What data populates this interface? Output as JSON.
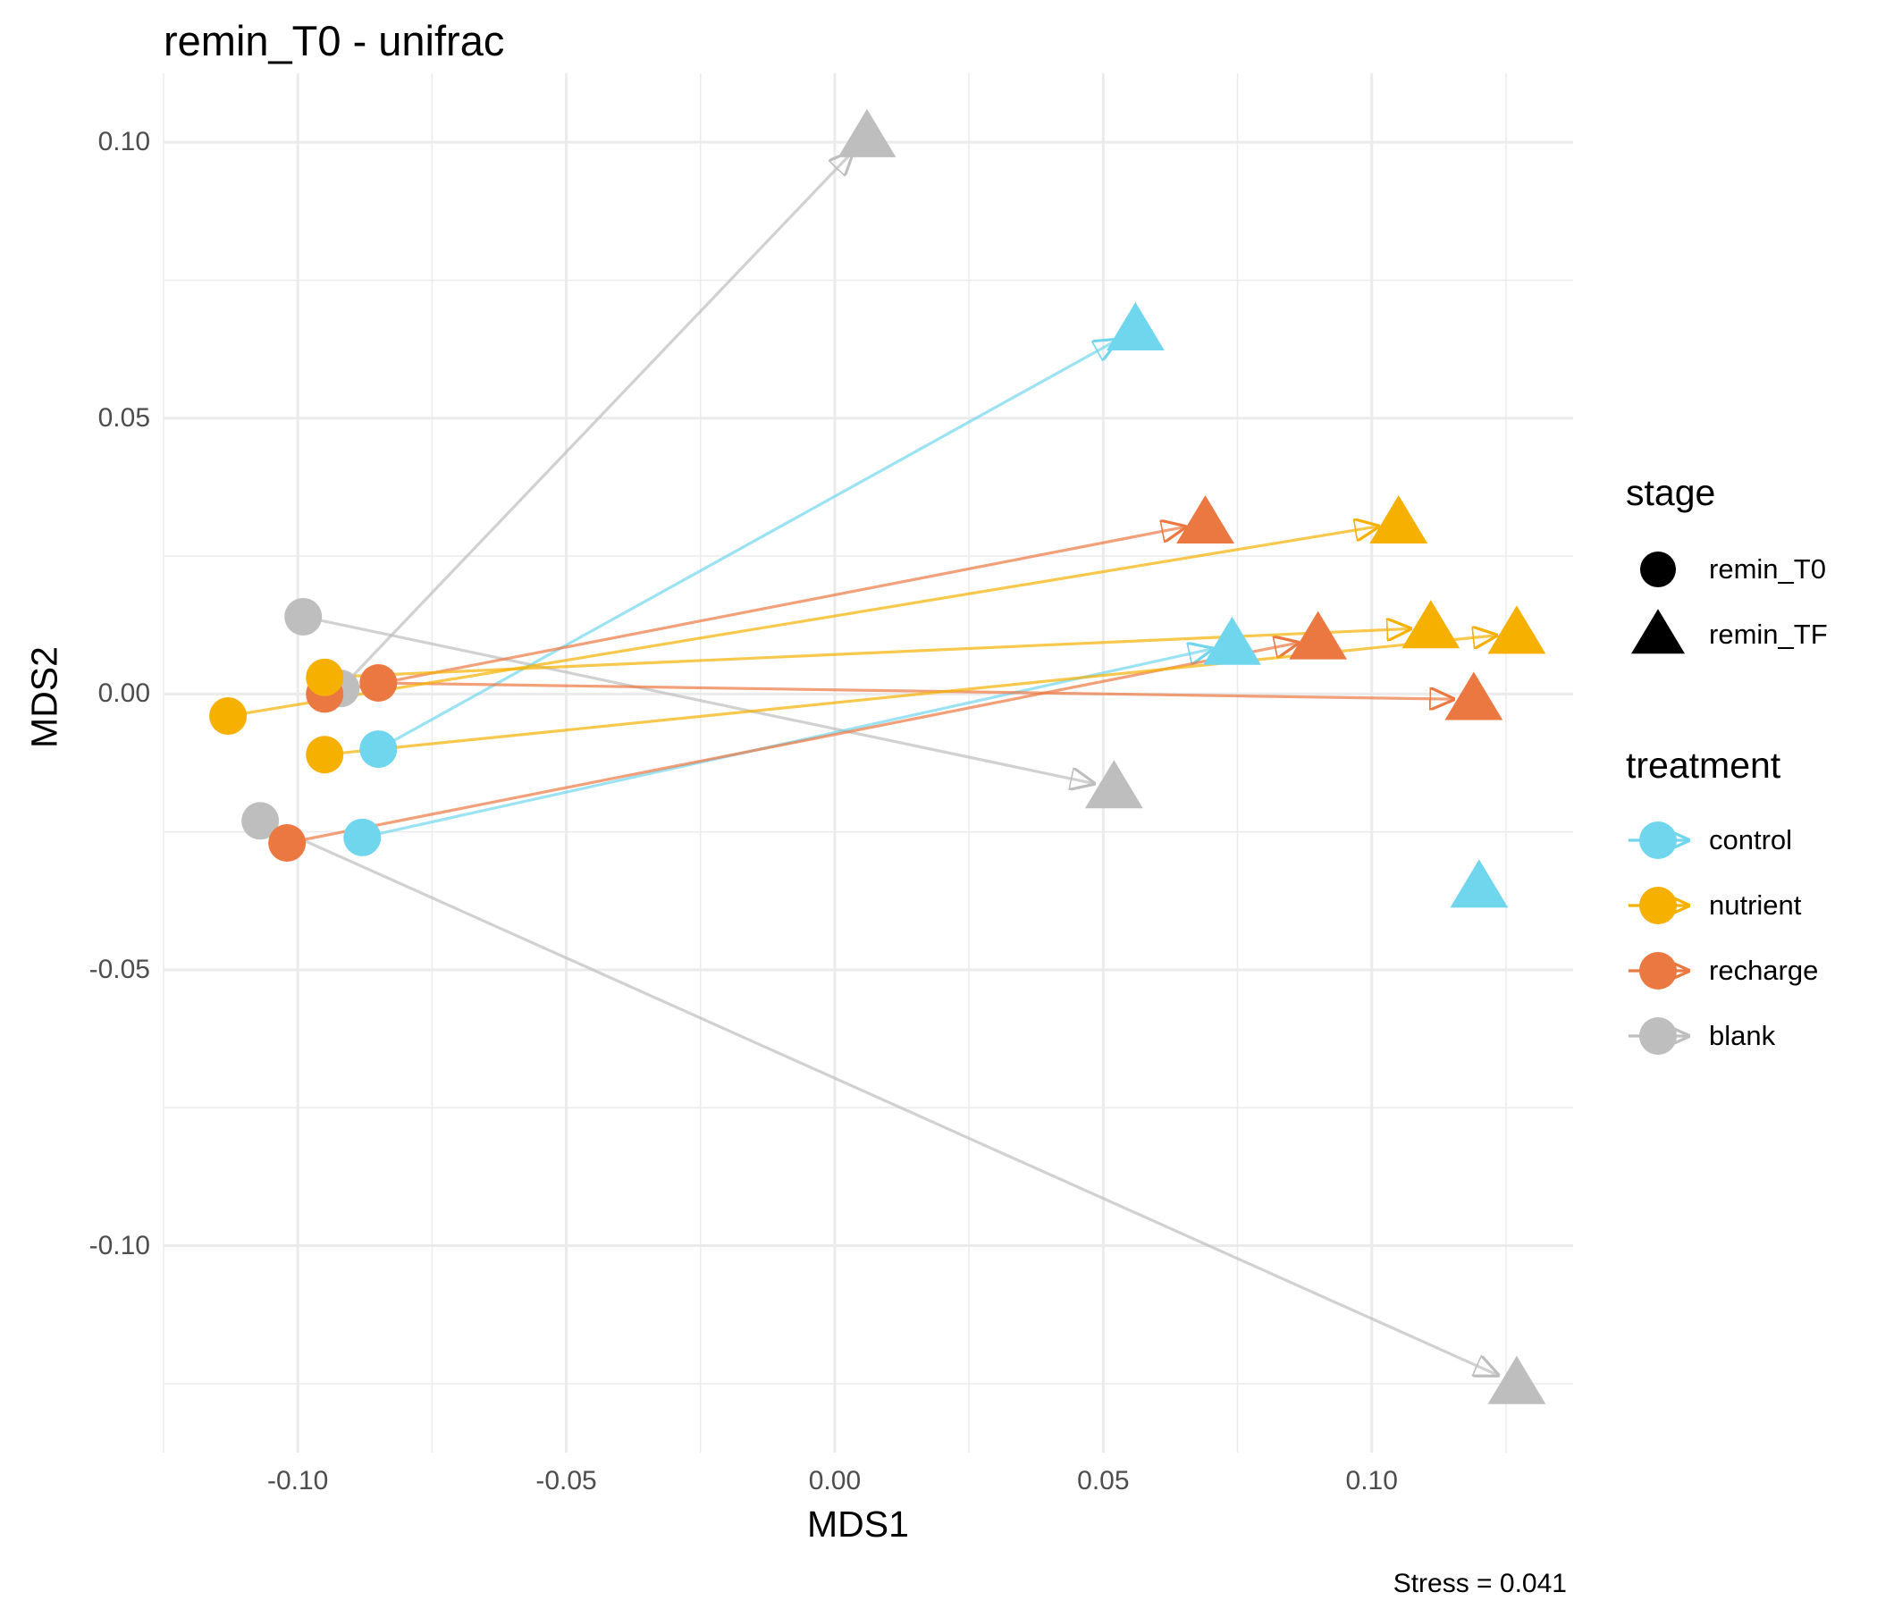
{
  "chart_data": {
    "type": "scatter",
    "title": "remin_T0 - unifrac",
    "xlabel": "MDS1",
    "ylabel": "MDS2",
    "xlim": [
      -0.125,
      0.1375
    ],
    "ylim": [
      -0.1375,
      0.1125
    ],
    "x_ticks": [
      -0.1,
      -0.05,
      0.0,
      0.05,
      0.1
    ],
    "x_tick_labels": [
      "-0.10",
      "-0.05",
      "0.00",
      "0.05",
      "0.10"
    ],
    "y_ticks": [
      0.1,
      0.05,
      0.0,
      -0.05,
      -0.1
    ],
    "y_tick_labels": [
      "0.10",
      "0.05",
      "0.00",
      "-0.05",
      "-0.10"
    ],
    "grid": true,
    "annotation": "Stress = 0.041",
    "legend_position": "right",
    "legend": {
      "stage": {
        "title": "stage",
        "items": [
          {
            "label": "remin_T0",
            "shape": "circle"
          },
          {
            "label": "remin_TF",
            "shape": "triangle"
          }
        ]
      },
      "treatment": {
        "title": "treatment",
        "items": [
          {
            "label": "control",
            "color": "#70D6EE"
          },
          {
            "label": "nutrient",
            "color": "#F5B000"
          },
          {
            "label": "recharge",
            "color": "#EC7841"
          },
          {
            "label": "blank",
            "color": "#BEBEBE"
          }
        ]
      }
    },
    "colors": {
      "control": "#70D6EE",
      "nutrient": "#F5B000",
      "recharge": "#EC7841",
      "blank": "#BEBEBE"
    },
    "series": [
      {
        "name": "blank",
        "from": [
          -0.092,
          0.001
        ],
        "to": [
          0.006,
          0.101
        ]
      },
      {
        "name": "blank",
        "from": [
          -0.099,
          0.014
        ],
        "to": [
          0.052,
          -0.017
        ]
      },
      {
        "name": "blank",
        "from": [
          -0.107,
          -0.023
        ],
        "to": [
          0.127,
          -0.125
        ]
      },
      {
        "name": "control",
        "from": [
          -0.085,
          -0.01
        ],
        "to": [
          0.056,
          0.066
        ]
      },
      {
        "name": "control",
        "from": [
          -0.088,
          -0.026
        ],
        "to": [
          0.074,
          0.009
        ]
      },
      {
        "name": "control",
        "from": null,
        "to": [
          0.12,
          -0.035
        ]
      },
      {
        "name": "recharge",
        "from": [
          -0.095,
          0.0
        ],
        "to": [
          0.069,
          0.031
        ]
      },
      {
        "name": "recharge",
        "from": [
          -0.085,
          0.002
        ],
        "to": [
          0.119,
          -0.001
        ]
      },
      {
        "name": "recharge",
        "from": [
          -0.102,
          -0.027
        ],
        "to": [
          0.09,
          0.01
        ]
      },
      {
        "name": "nutrient",
        "from": [
          -0.113,
          -0.004
        ],
        "to": [
          0.105,
          0.031
        ]
      },
      {
        "name": "nutrient",
        "from": [
          -0.095,
          0.003
        ],
        "to": [
          0.111,
          0.012
        ]
      },
      {
        "name": "nutrient",
        "from": [
          -0.095,
          -0.011
        ],
        "to": [
          0.127,
          0.011
        ]
      }
    ]
  }
}
